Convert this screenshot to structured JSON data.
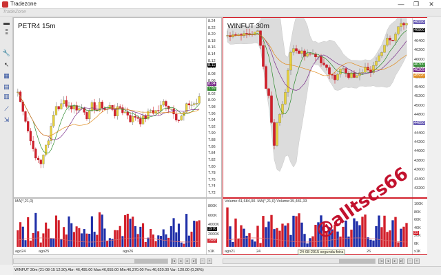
{
  "app": {
    "title": "Tradezone",
    "subtitle": "TradeZone"
  },
  "window_controls": {
    "minimize": "—",
    "maximize": "❐",
    "close": "✕"
  },
  "panels": {
    "left": {
      "title": "PETR4 15m",
      "y_ticks": [
        "8.24",
        "8.22",
        "8.20",
        "8.18",
        "8.16",
        "8.14",
        "8.12",
        "8.10",
        "8.08",
        "8.06",
        "8.04",
        "8.02",
        "8.00",
        "7.98",
        "7.96",
        "7.94",
        "7.92",
        "7.90",
        "7.88",
        "7.86",
        "7.84",
        "7.82",
        "7.80",
        "7.78",
        "7.76",
        "7.74",
        "7.72"
      ],
      "price_tags": [
        {
          "text": "8.11",
          "color": "#000000"
        },
        {
          "text": "8.04",
          "color": "#7a2d8a"
        },
        {
          "text": "7.99",
          "color": "#2d8a2d"
        }
      ],
      "volume_title": "MA(*,21,0)",
      "volume_ticks": [
        "800K",
        "600K",
        "4000K",
        "2000K"
      ],
      "volume_tags": [
        {
          "text": "1970",
          "color": "#000000"
        },
        {
          "text": "1988",
          "color": "#d21f2a"
        }
      ],
      "x_labels": [
        "ago24",
        "ago25",
        "ago26"
      ],
      "scale": "x1K"
    },
    "right": {
      "title": "WINFUT 30m",
      "y_ticks": [
        "46800",
        "46600",
        "46400",
        "46200",
        "46000",
        "45800",
        "45600",
        "45400",
        "45200",
        "45000",
        "44800",
        "44600",
        "44400",
        "44200",
        "44000",
        "43800",
        "43600",
        "43400",
        "43200"
      ],
      "price_tags": [
        {
          "text": "46990",
          "color": "#6b5fb5"
        },
        {
          "text": "46800",
          "color": "#000000"
        },
        {
          "text": "46300",
          "color": "#2d8a2d"
        },
        {
          "text": "46205",
          "color": "#7a2d8a"
        },
        {
          "text": "45920",
          "color": "#e08a1a"
        },
        {
          "text": "44850",
          "color": "#6b5fb5"
        }
      ],
      "volume_title": "Volume:41,684,00. MA(*,21,0) Volume:35,481,33",
      "volume_ticks": [
        "100K",
        "80K",
        "60K",
        "40K",
        "20K",
        "0K"
      ],
      "volume_tags": [
        {
          "text": "33",
          "color": "#d21f2a"
        }
      ],
      "x_labels": [
        "ago21",
        "24",
        "26"
      ],
      "tooltip": "24-08-2015 segunda-feira",
      "scale": "x1K"
    }
  },
  "status": {
    "text": "WINFUT 30m  (21-08-15 12:30)  Abr: 46,495.00  Max:46,655.00  Min:46,370.00  Fec:46,620.00  Var: 120.00 (0,26%)"
  },
  "watermark": "@alltscs66",
  "toolbar_icons": [
    "list-icon",
    "lines-icon",
    "wrench-icon",
    "cursor-icon",
    "chart-type-icon",
    "bar-icon",
    "candle-icon",
    "drawline-icon",
    "arrow-icon"
  ]
}
